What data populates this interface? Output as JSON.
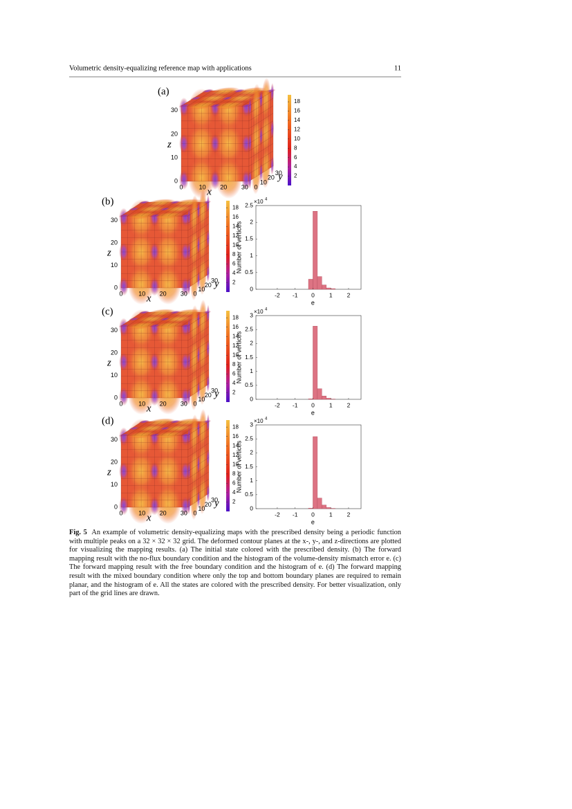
{
  "header": {
    "title": "Volumetric density-equalizing reference map with applications",
    "page_number": "11"
  },
  "figure": {
    "panels": [
      {
        "label": "(a)"
      },
      {
        "label": "(b)",
        "histogram": {
          "ylim": [
            0,
            2.5
          ],
          "yticks": [
            0,
            0.5,
            1,
            1.5,
            2,
            2.5
          ],
          "counts": [
            0.3,
            2.33,
            0.38,
            0.13,
            0.04,
            0.02
          ]
        }
      },
      {
        "label": "(c)",
        "histogram": {
          "ylim": [
            0,
            3
          ],
          "yticks": [
            0,
            0.5,
            1,
            1.5,
            2,
            2.5,
            3
          ],
          "counts": [
            0.02,
            2.62,
            0.38,
            0.12,
            0.04,
            0.01
          ]
        }
      },
      {
        "label": "(d)",
        "histogram": {
          "ylim": [
            0,
            3
          ],
          "yticks": [
            0,
            0.5,
            1,
            1.5,
            2,
            2.5,
            3
          ],
          "counts": [
            0.02,
            2.58,
            0.38,
            0.13,
            0.04,
            0.01
          ]
        }
      }
    ],
    "cube": {
      "x_label": "x",
      "y_label": "y",
      "z_label": "z",
      "ticks": [
        0,
        10,
        20,
        30
      ]
    },
    "colorbar": {
      "lim": [
        0,
        19.5
      ],
      "ticks": [
        2,
        4,
        6,
        8,
        10,
        12,
        14,
        16,
        18
      ]
    },
    "histogram": {
      "x_label": "e",
      "y_label": "Number of vertices",
      "scale": {
        "base": "×10",
        "power": "4"
      },
      "xlim": [
        -3.2,
        2.7
      ],
      "xticks": [
        -2,
        -1,
        0,
        1,
        2
      ],
      "bins": [
        -0.25,
        0,
        0.25,
        0.5,
        0.75,
        1,
        1.25
      ],
      "color": "#dd7383"
    }
  },
  "caption": {
    "label": "Fig. 5",
    "text": "An example of volumetric density-equalizing maps with the prescribed density being a periodic function with multiple peaks on a 32 × 32 × 32 grid. The deformed contour planes at the x-, y-, and z-directions are plotted for visualizing the mapping results. (a) The initial state colored with the prescribed density. (b) The forward mapping result with the no-flux boundary condition and the histogram of the volume-density mismatch error e. (c) The forward mapping result with the free boundary condition and the histogram of e. (d) The forward mapping result with the mixed boundary condition where only the top and bottom boundary planes are required to remain planar, and the histogram of e. All the states are colored with the prescribed density. For better visualization, only part of the grid lines are drawn."
  }
}
